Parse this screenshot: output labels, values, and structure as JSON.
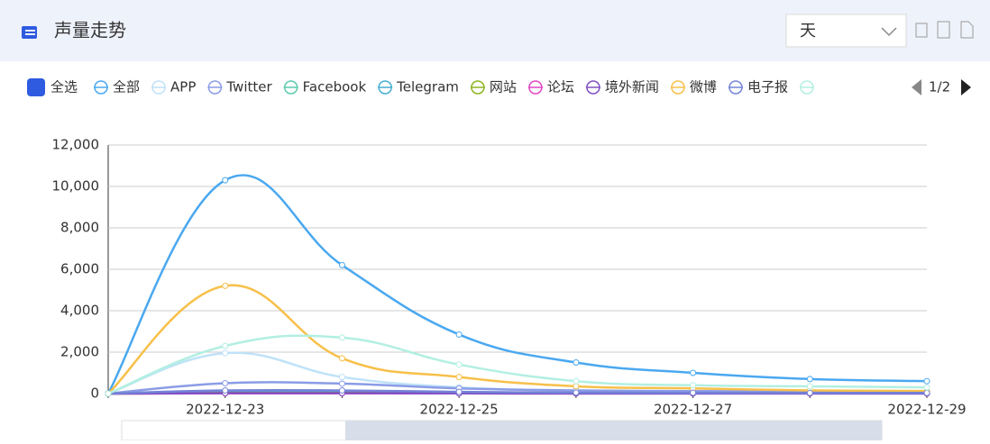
{
  "header": {
    "title": "声量走势",
    "period": "天"
  },
  "select_all": "全选",
  "legend_pager": "1/2",
  "chart_data": {
    "type": "line",
    "categories": [
      null,
      "2022-12-23",
      null,
      "2022-12-25",
      null,
      "2022-12-27",
      null,
      "2022-12-29"
    ],
    "ylim": [
      0,
      12000
    ],
    "yticks": [
      0,
      {
        "value": 2000,
        "label": "2,000"
      },
      {
        "value": 4000,
        "label": "4,000"
      },
      {
        "value": 6000,
        "label": "6,000"
      },
      {
        "value": 8000,
        "label": "8,000"
      },
      {
        "value": 10000,
        "label": "10,000"
      },
      {
        "value": 12000,
        "label": "12,000"
      }
    ],
    "grid": true,
    "series": [
      {
        "name": "全部",
        "color": "#4aa8f0",
        "values": [
          0,
          10300,
          6200,
          2850,
          1500,
          1000,
          700,
          600
        ]
      },
      {
        "name": "APP",
        "color": "#bfe2f8",
        "values": [
          0,
          1950,
          800,
          300,
          150,
          100,
          80,
          60
        ]
      },
      {
        "name": "Twitter",
        "color": "#8a9ce6",
        "values": [
          0,
          500,
          480,
          250,
          150,
          120,
          100,
          90
        ]
      },
      {
        "name": "Facebook",
        "color": "#5ccbae",
        "values": [
          0,
          100,
          100,
          50,
          30,
          20,
          20,
          20
        ]
      },
      {
        "name": "Telegram",
        "color": "#45aed0",
        "values": [
          0,
          60,
          50,
          30,
          20,
          10,
          10,
          10
        ]
      },
      {
        "name": "网站",
        "color": "#8cb520",
        "values": [
          0,
          30,
          30,
          20,
          10,
          10,
          10,
          10
        ]
      },
      {
        "name": "论坛",
        "color": "#e046c4",
        "values": [
          0,
          10,
          10,
          10,
          5,
          5,
          5,
          5
        ]
      },
      {
        "name": "境外新闻",
        "color": "#8050c4",
        "values": [
          0,
          20,
          20,
          10,
          5,
          5,
          5,
          5
        ]
      },
      {
        "name": "微博",
        "color": "#f7c04a",
        "values": [
          0,
          5200,
          1700,
          800,
          350,
          250,
          150,
          120
        ]
      },
      {
        "name": "电子报",
        "color": "#7383d8",
        "values": [
          0,
          150,
          150,
          80,
          50,
          40,
          30,
          30
        ]
      },
      {
        "color": "#b2efe2",
        "values": [
          0,
          2300,
          2700,
          1400,
          600,
          400,
          350,
          300
        ]
      }
    ]
  }
}
